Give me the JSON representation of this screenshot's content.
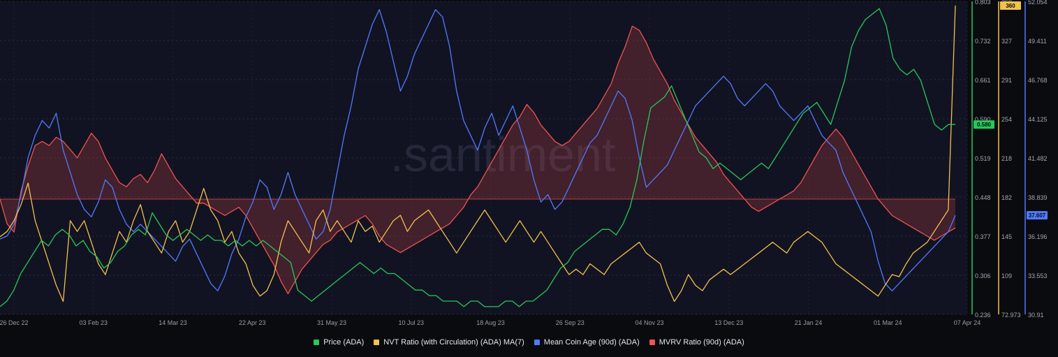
{
  "chart_data": {
    "type": "line",
    "watermark": ".santiment",
    "x_ticks": [
      "26 Dec 22",
      "03 Feb 23",
      "14 Mar 23",
      "22 Apr 23",
      "31 May 23",
      "10 Jul 23",
      "18 Aug 23",
      "26 Sep 23",
      "04 Nov 23",
      "13 Dec 23",
      "21 Jan 24",
      "01 Mar 24",
      "07 Apr 24"
    ],
    "axes": [
      {
        "id": "price",
        "color": "#26c95a",
        "ticks": [
          "0.803",
          "0.732",
          "0.661",
          "0.590",
          "0.519",
          "0.448",
          "0.377",
          "0.306",
          "0.236"
        ],
        "range": [
          0.236,
          0.803
        ],
        "current": "0.580",
        "current_value": 0.58
      },
      {
        "id": "nvt",
        "color": "#f2c14e",
        "ticks": [
          "360",
          "327",
          "291",
          "254",
          "218",
          "182",
          "145",
          "109",
          "72.973"
        ],
        "range": [
          72.973,
          363.8
        ],
        "current": "360",
        "current_value": 360
      },
      {
        "id": "coinage",
        "color": "#4f7bff",
        "ticks": [
          "52.054",
          "49.411",
          "46.768",
          "44.125",
          "41.482",
          "38.839",
          "36.196",
          "33.553",
          "30.91"
        ],
        "range": [
          30.91,
          52.054
        ],
        "current": "37.607",
        "current_value": 37.607
      }
    ],
    "baseline_level_mvrv": 0.0,
    "legend": [
      {
        "label": "Price (ADA)",
        "color": "#26c95a"
      },
      {
        "label": "NVT Ratio (with Circulation) (ADA) MA(7)",
        "color": "#f2c14e"
      },
      {
        "label": "Mean Coin Age (90d) (ADA)",
        "color": "#4f7bff"
      },
      {
        "label": "MVRV Ratio (90d) (ADA)",
        "color": "#ef5350"
      }
    ],
    "series": [
      {
        "name": "Price (ADA)",
        "axis": "price",
        "color": "#26c95a",
        "values": [
          0.25,
          0.26,
          0.28,
          0.31,
          0.33,
          0.35,
          0.37,
          0.36,
          0.38,
          0.39,
          0.38,
          0.36,
          0.37,
          0.35,
          0.34,
          0.32,
          0.33,
          0.35,
          0.36,
          0.38,
          0.39,
          0.38,
          0.42,
          0.4,
          0.38,
          0.37,
          0.38,
          0.39,
          0.38,
          0.37,
          0.38,
          0.37,
          0.37,
          0.36,
          0.37,
          0.36,
          0.37,
          0.36,
          0.37,
          0.36,
          0.35,
          0.34,
          0.33,
          0.28,
          0.27,
          0.26,
          0.27,
          0.28,
          0.29,
          0.3,
          0.31,
          0.32,
          0.33,
          0.32,
          0.31,
          0.32,
          0.31,
          0.31,
          0.3,
          0.29,
          0.28,
          0.28,
          0.27,
          0.27,
          0.26,
          0.26,
          0.26,
          0.25,
          0.26,
          0.26,
          0.25,
          0.25,
          0.25,
          0.26,
          0.26,
          0.25,
          0.26,
          0.26,
          0.27,
          0.28,
          0.3,
          0.32,
          0.33,
          0.35,
          0.36,
          0.37,
          0.38,
          0.39,
          0.39,
          0.38,
          0.4,
          0.43,
          0.48,
          0.55,
          0.61,
          0.62,
          0.63,
          0.65,
          0.62,
          0.59,
          0.56,
          0.53,
          0.52,
          0.5,
          0.51,
          0.5,
          0.49,
          0.48,
          0.49,
          0.5,
          0.51,
          0.5,
          0.52,
          0.54,
          0.56,
          0.58,
          0.6,
          0.61,
          0.62,
          0.6,
          0.58,
          0.62,
          0.66,
          0.72,
          0.75,
          0.77,
          0.78,
          0.79,
          0.76,
          0.7,
          0.68,
          0.67,
          0.68,
          0.66,
          0.62,
          0.58,
          0.57,
          0.58,
          0.58
        ]
      },
      {
        "name": "NVT Ratio (with Circulation) (ADA) MA(7)",
        "axis": "nvt",
        "color": "#f2c14e",
        "values": [
          145,
          150,
          160,
          175,
          195,
          160,
          140,
          120,
          100,
          85,
          160,
          150,
          160,
          140,
          120,
          110,
          130,
          150,
          140,
          160,
          175,
          150,
          140,
          130,
          150,
          160,
          140,
          150,
          170,
          190,
          170,
          160,
          140,
          150,
          130,
          120,
          100,
          90,
          95,
          110,
          140,
          160,
          150,
          140,
          130,
          160,
          170,
          150,
          160,
          150,
          140,
          160,
          150,
          155,
          140,
          150,
          160,
          165,
          150,
          160,
          165,
          170,
          160,
          150,
          140,
          130,
          140,
          150,
          160,
          170,
          160,
          150,
          140,
          150,
          160,
          150,
          140,
          150,
          140,
          130,
          120,
          110,
          115,
          110,
          120,
          115,
          110,
          120,
          125,
          130,
          135,
          140,
          130,
          125,
          120,
          100,
          85,
          95,
          110,
          100,
          95,
          105,
          110,
          115,
          110,
          115,
          120,
          125,
          130,
          135,
          140,
          135,
          130,
          140,
          145,
          150,
          145,
          140,
          130,
          120,
          115,
          110,
          105,
          100,
          95,
          90,
          100,
          110,
          108,
          120,
          130,
          135,
          140,
          150,
          160,
          170,
          360
        ]
      },
      {
        "name": "Mean Coin Age (90d) (ADA)",
        "axis": "coinage",
        "color": "#4f7bff",
        "values": [
          36.0,
          36.2,
          37.0,
          39.0,
          41.5,
          43.0,
          44.0,
          43.5,
          44.5,
          42.0,
          40.5,
          39.0,
          38.0,
          37.5,
          38.5,
          40.0,
          39.5,
          38.0,
          37.0,
          36.5,
          37.0,
          36.5,
          36.0,
          35.5,
          35.0,
          34.5,
          35.5,
          36.0,
          35.0,
          34.0,
          33.0,
          32.5,
          33.5,
          35.0,
          36.0,
          37.5,
          38.5,
          40.0,
          39.5,
          38.0,
          39.0,
          40.5,
          39.0,
          38.0,
          37.0,
          36.0,
          36.5,
          38.0,
          40.5,
          43.0,
          45.0,
          47.5,
          49.0,
          50.5,
          51.5,
          50.0,
          48.0,
          46.0,
          47.0,
          48.5,
          49.5,
          50.5,
          51.5,
          51.0,
          49.0,
          46.0,
          44.0,
          43.0,
          42.0,
          43.5,
          44.5,
          43.0,
          44.0,
          45.0,
          43.5,
          42.0,
          40.0,
          38.5,
          39.0,
          38.0,
          38.5,
          39.5,
          40.5,
          41.5,
          42.5,
          43.0,
          44.0,
          45.0,
          46.0,
          45.5,
          44.0,
          41.5,
          39.5,
          40.0,
          40.5,
          41.0,
          42.0,
          43.0,
          44.0,
          45.0,
          45.5,
          46.0,
          46.5,
          47.0,
          46.5,
          45.5,
          45.0,
          45.5,
          46.0,
          46.5,
          46.0,
          45.0,
          44.5,
          44.0,
          44.5,
          45.0,
          44.0,
          43.0,
          42.5,
          42.0,
          40.5,
          39.5,
          38.5,
          37.5,
          36.5,
          34.5,
          33.0,
          32.5,
          33.0,
          33.5,
          34.0,
          34.5,
          35.0,
          35.5,
          36.0,
          36.5,
          37.6
        ]
      },
      {
        "name": "MVRV Ratio (90d) (ADA)",
        "axis": "mvrv",
        "color": "#ef5350",
        "values": [
          0.0,
          -3.0,
          -4.0,
          1.0,
          4.0,
          6.5,
          7.0,
          6.5,
          7.5,
          7.0,
          6.0,
          5.0,
          6.5,
          8.0,
          7.0,
          5.0,
          3.5,
          2.0,
          1.5,
          2.5,
          3.0,
          2.0,
          3.5,
          5.5,
          4.0,
          2.5,
          1.5,
          0.5,
          -0.5,
          -0.5,
          -1.0,
          -1.5,
          -2.0,
          -1.5,
          -1.0,
          -2.0,
          -3.5,
          -5.0,
          -6.5,
          -8.0,
          -10.0,
          -11.5,
          -10.0,
          -8.5,
          -7.5,
          -6.5,
          -5.5,
          -5.0,
          -4.0,
          -3.5,
          -3.0,
          -2.5,
          -2.0,
          -3.0,
          -4.5,
          -5.5,
          -6.0,
          -6.5,
          -6.0,
          -5.5,
          -5.0,
          -4.5,
          -4.0,
          -3.5,
          -3.0,
          -2.0,
          -1.0,
          0.5,
          1.5,
          3.0,
          4.5,
          6.0,
          7.5,
          9.0,
          10.0,
          11.5,
          10.5,
          9.0,
          8.0,
          7.0,
          6.5,
          7.0,
          8.0,
          9.0,
          10.0,
          11.0,
          12.5,
          14.0,
          16.5,
          18.5,
          21.0,
          20.5,
          19.0,
          17.0,
          15.5,
          14.0,
          12.0,
          10.5,
          9.0,
          7.5,
          6.5,
          5.5,
          4.5,
          3.0,
          2.0,
          1.0,
          0.0,
          -1.0,
          -1.5,
          -1.0,
          -0.5,
          0.0,
          0.5,
          1.0,
          2.0,
          3.5,
          5.0,
          6.5,
          7.5,
          8.5,
          7.5,
          6.0,
          4.5,
          3.0,
          1.5,
          0.0,
          -1.0,
          -2.0,
          -2.5,
          -3.0,
          -3.5,
          -4.0,
          -4.5,
          -5.0,
          -4.5,
          -4.0,
          -3.5
        ]
      }
    ],
    "mvrv_range": [
      -14,
      24
    ]
  }
}
